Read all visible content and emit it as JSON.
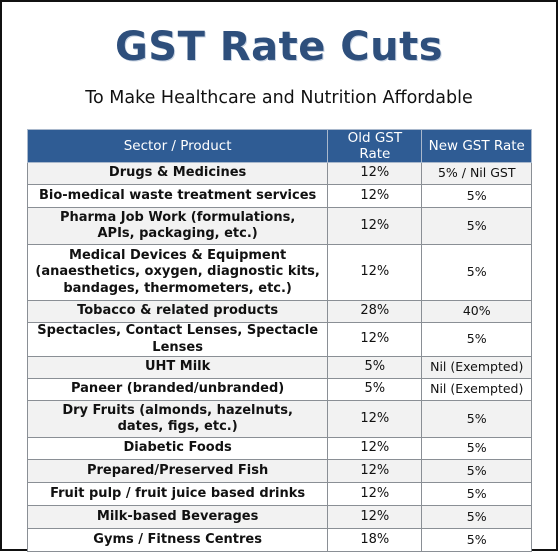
{
  "title": "GST Rate Cuts",
  "subtitle": "To Make Healthcare and Nutrition Affordable",
  "table": {
    "headers": [
      "Sector / Product",
      "Old GST Rate",
      "New GST Rate"
    ],
    "rows": [
      {
        "product": "Drugs & Medicines",
        "old": "12%",
        "new": "5% / Nil GST"
      },
      {
        "product": "Bio-medical waste treatment services",
        "old": "12%",
        "new": "5%"
      },
      {
        "product": "Pharma Job Work (formulations,\nAPIs, packaging, etc.)",
        "old": "12%",
        "new": "5%"
      },
      {
        "product": "Medical Devices & Equipment\n(anaesthetics, oxygen, diagnostic kits,\nbandages, thermometers, etc.)",
        "old": "12%",
        "new": "5%"
      },
      {
        "product": "Tobacco & related products",
        "old": "28%",
        "new": "40%"
      },
      {
        "product": "Spectacles, Contact Lenses, Spectacle Lenses",
        "old": "12%",
        "new": "5%"
      },
      {
        "product": "UHT Milk",
        "old": "5%",
        "new": "Nil (Exempted)"
      },
      {
        "product": "Paneer (branded/unbranded)",
        "old": "5%",
        "new": "Nil (Exempted)"
      },
      {
        "product": "Dry Fruits (almonds, hazelnuts,\ndates, figs, etc.)",
        "old": "12%",
        "new": "5%"
      },
      {
        "product": "Diabetic Foods",
        "old": "12%",
        "new": "5%"
      },
      {
        "product": "Prepared/Preserved Fish",
        "old": "12%",
        "new": "5%"
      },
      {
        "product": "Fruit pulp / fruit juice based drinks",
        "old": "12%",
        "new": "5%"
      },
      {
        "product": "Milk-based Beverages",
        "old": "12%",
        "new": "5%"
      },
      {
        "product": "Gyms / Fitness Centres",
        "old": "18%",
        "new": "5%"
      }
    ]
  },
  "colors": {
    "title": "#2e4f7c",
    "header_bg": "#2f5c94"
  }
}
